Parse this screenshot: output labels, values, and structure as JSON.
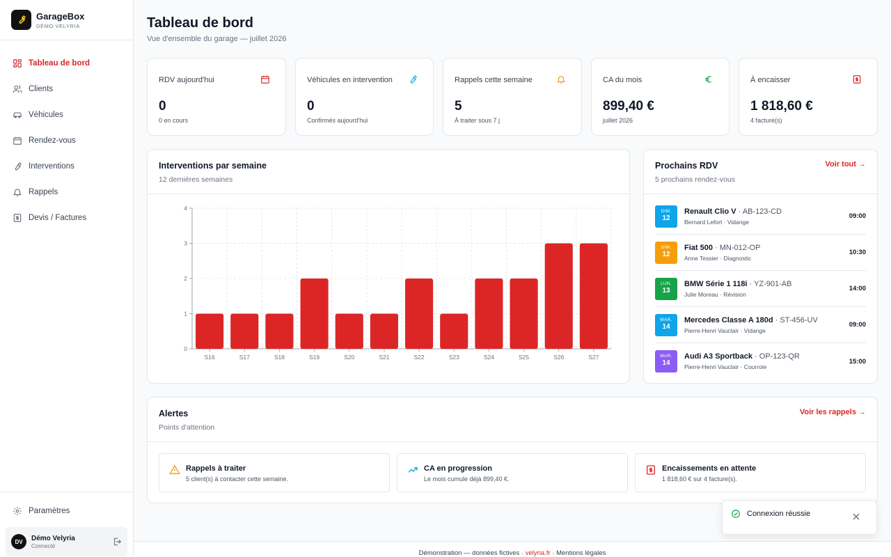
{
  "brand": {
    "name": "GarageBox",
    "subtitle": "DÉMO VELYRIA"
  },
  "nav": [
    {
      "label": "Tableau de bord",
      "icon": "dashboard-icon",
      "active": true
    },
    {
      "label": "Clients",
      "icon": "users-icon"
    },
    {
      "label": "Véhicules",
      "icon": "car-icon"
    },
    {
      "label": "Rendez-vous",
      "icon": "calendar-icon"
    },
    {
      "label": "Interventions",
      "icon": "wrench-icon"
    },
    {
      "label": "Rappels",
      "icon": "bell-icon"
    },
    {
      "label": "Devis / Factures",
      "icon": "invoice-icon"
    }
  ],
  "settings_label": "Paramètres",
  "user": {
    "initials": "DV",
    "name": "Démo Velyria",
    "status": "Connecté"
  },
  "page": {
    "title": "Tableau de bord",
    "subtitle": "Vue d'ensemble du garage — juillet 2026"
  },
  "stats": [
    {
      "label": "RDV aujourd'hui",
      "value": "0",
      "note": "0 en cours",
      "icon": "calendar-icon",
      "color": "#dc2626"
    },
    {
      "label": "Véhicules en intervention",
      "value": "0",
      "note": "Confirmés aujourd'hui",
      "icon": "wrench-icon",
      "color": "#0ea5e9"
    },
    {
      "label": "Rappels cette semaine",
      "value": "5",
      "note": "À traiter sous 7 j",
      "icon": "bell-icon",
      "color": "#f59e0b"
    },
    {
      "label": "CA du mois",
      "value": "899,40 €",
      "note": "juillet 2026",
      "icon": "euro-icon",
      "color": "#16a34a"
    },
    {
      "label": "À encaisser",
      "value": "1 818,60 €",
      "note": "4 facture(s)",
      "icon": "invoice-icon",
      "color": "#dc2626"
    }
  ],
  "chart_card": {
    "title": "Interventions par semaine",
    "subtitle": "12 dernières semaines"
  },
  "chart_data": {
    "type": "bar",
    "categories": [
      "S16",
      "S17",
      "S18",
      "S19",
      "S20",
      "S21",
      "S22",
      "S23",
      "S24",
      "S25",
      "S26",
      "S27"
    ],
    "values": [
      1,
      1,
      1,
      2,
      1,
      1,
      2,
      1,
      2,
      2,
      3,
      3
    ],
    "yticks": [
      "0",
      "1",
      "2",
      "3",
      "4"
    ],
    "ylim": [
      0,
      4
    ],
    "grid": true,
    "color": "#dc2626"
  },
  "rdv_card": {
    "title": "Prochains RDV",
    "subtitle": "5 prochains rendez-vous",
    "link": "Voir tout →",
    "items": [
      {
        "day": "DIM.",
        "date": "12",
        "car": "Renault Clio V",
        "plate": " · AB-123-CD",
        "meta": "Bernard Lefort · Vidange",
        "time": "09:00",
        "color": "#0ea5e9"
      },
      {
        "day": "DIM.",
        "date": "12",
        "car": "Fiat 500",
        "plate": " · MN-012-OP",
        "meta": "Anne Tessier · Diagnostic",
        "time": "10:30",
        "color": "#f59e0b"
      },
      {
        "day": "LUN.",
        "date": "13",
        "car": "BMW Série 1 118i",
        "plate": " · YZ-901-AB",
        "meta": "Julie Moreau · Révision",
        "time": "14:00",
        "color": "#16a34a"
      },
      {
        "day": "MAR.",
        "date": "14",
        "car": "Mercedes Classe A 180d",
        "plate": " · ST-456-UV",
        "meta": "Pierre-Henri Vauclair · Vidange",
        "time": "09:00",
        "color": "#0ea5e9"
      },
      {
        "day": "MAR.",
        "date": "14",
        "car": "Audi A3 Sportback",
        "plate": " · OP-123-QR",
        "meta": "Pierre-Henri Vauclair · Courroie",
        "time": "15:00",
        "color": "#8b5cf6"
      }
    ]
  },
  "alerts_card": {
    "title": "Alertes",
    "subtitle": "Points d'attention",
    "link": "Voir les rappels →",
    "items": [
      {
        "title": "Rappels à traiter",
        "text": "5 client(s) à contacter cette semaine.",
        "icon": "warning-icon",
        "color": "#f59e0b"
      },
      {
        "title": "CA en progression",
        "text": "Le mois cumule déjà 899,40 €.",
        "icon": "trending-up-icon",
        "color": "#0ea5e9"
      },
      {
        "title": "Encaissements en attente",
        "text": "1 818,60 € sur 4 facture(s).",
        "icon": "invoice-icon",
        "color": "#dc2626"
      }
    ]
  },
  "footer": {
    "text1": "Démonstration — données fictives · ",
    "link1": "velyria.fr",
    "text2": " · Mentions légales"
  },
  "toast": {
    "message": "Connexion réussie"
  }
}
